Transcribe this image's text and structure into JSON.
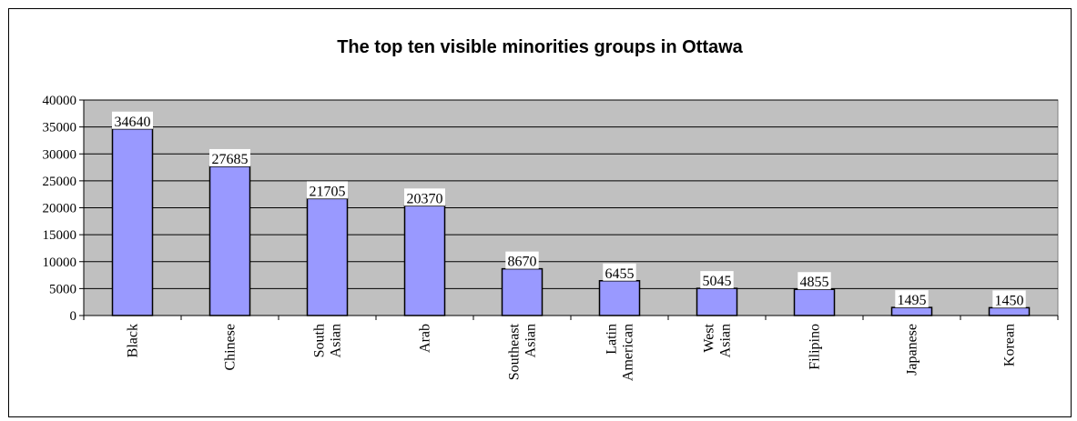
{
  "chart_data": {
    "type": "bar",
    "title": "The top ten visible minorities groups in Ottawa",
    "categories": [
      "Black",
      "Chinese",
      "South Asian",
      "Arab",
      "Southeast Asian",
      "Latin American",
      "West Asian",
      "Filipino",
      "Japanese",
      "Korean"
    ],
    "category_lines": [
      [
        "Black"
      ],
      [
        "Chinese"
      ],
      [
        "South",
        "Asian"
      ],
      [
        "Arab"
      ],
      [
        "Southeast",
        "Asian"
      ],
      [
        "Latin",
        "American"
      ],
      [
        "West",
        "Asian"
      ],
      [
        "Filipino"
      ],
      [
        "Japanese"
      ],
      [
        "Korean"
      ]
    ],
    "values": [
      34640,
      27685,
      21705,
      20370,
      8670,
      6455,
      5045,
      4855,
      1495,
      1450
    ],
    "ylim": [
      0,
      40000
    ],
    "yticks": [
      0,
      5000,
      10000,
      15000,
      20000,
      25000,
      30000,
      35000,
      40000
    ],
    "xlabel": "",
    "ylabel": "",
    "grid": true,
    "legend": false,
    "bar_color": "#9999ff",
    "plot_bg": "#c0c0c0"
  }
}
